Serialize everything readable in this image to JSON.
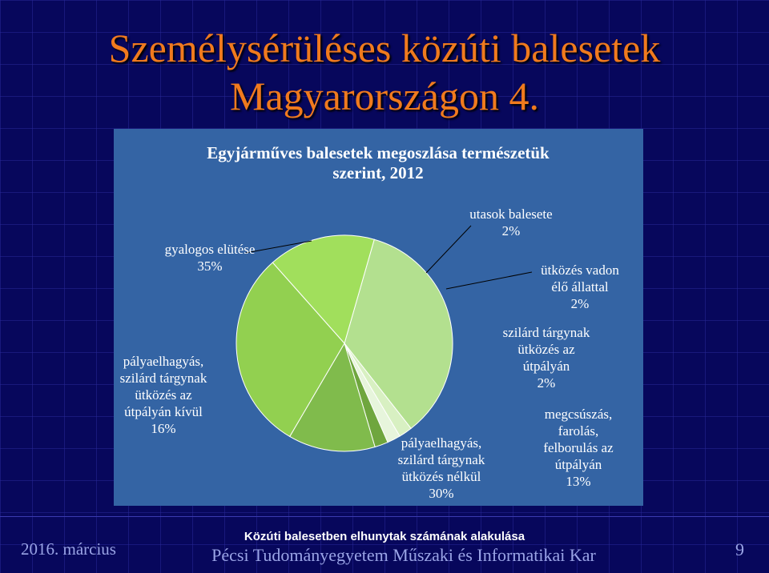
{
  "slide": {
    "title_line1": "Személysérüléses közúti balesetek",
    "title_line2": "Magyarországon 4."
  },
  "footer": {
    "date": "2016. március",
    "center_title": "Közúti balesetben elhunytak számának alakulása",
    "center_subtitle": "Pécsi Tudományegyetem Műszaki és Informatikai Kar",
    "page_number": "9"
  },
  "colors": {
    "background": "#07075c",
    "title": "#f07a1e",
    "panel": "#3464a4"
  },
  "chart_data": {
    "type": "pie",
    "title_line1": "Egyjárműves balesetek megoszlása természetük",
    "title_line2": "szerint, 2012",
    "legend": "none",
    "slices": [
      {
        "value": 35,
        "color": "#b3e08f",
        "label_lines": [
          "gyalogos elütése",
          "35%"
        ]
      },
      {
        "value": 2,
        "color": "#d8f0c2",
        "label_lines": [
          "utasok balesete",
          "2%"
        ]
      },
      {
        "value": 2,
        "color": "#e7f5dc",
        "label_lines": [
          "ütközés vadon",
          "élő állattal",
          "2%"
        ]
      },
      {
        "value": 2,
        "color": "#6fa63e",
        "label_lines": [
          "szilárd tárgynak",
          "ütközés az",
          "útpályán",
          "2%"
        ]
      },
      {
        "value": 13,
        "color": "#80bb4c",
        "label_lines": [
          "megcsúszás,",
          "farolás,",
          "felborulás az",
          "útpályán",
          "13%"
        ]
      },
      {
        "value": 30,
        "color": "#92d050",
        "label_lines": [
          "pályaelhagyás,",
          "szilárd tárgynak",
          "ütközés nélkül",
          "30%"
        ]
      },
      {
        "value": 16,
        "color": "#a1df5c",
        "label_lines": [
          "pályaelhagyás,",
          "szilárd tárgynak",
          "ütközés az",
          "útpályán kívül",
          "16%"
        ]
      }
    ]
  }
}
